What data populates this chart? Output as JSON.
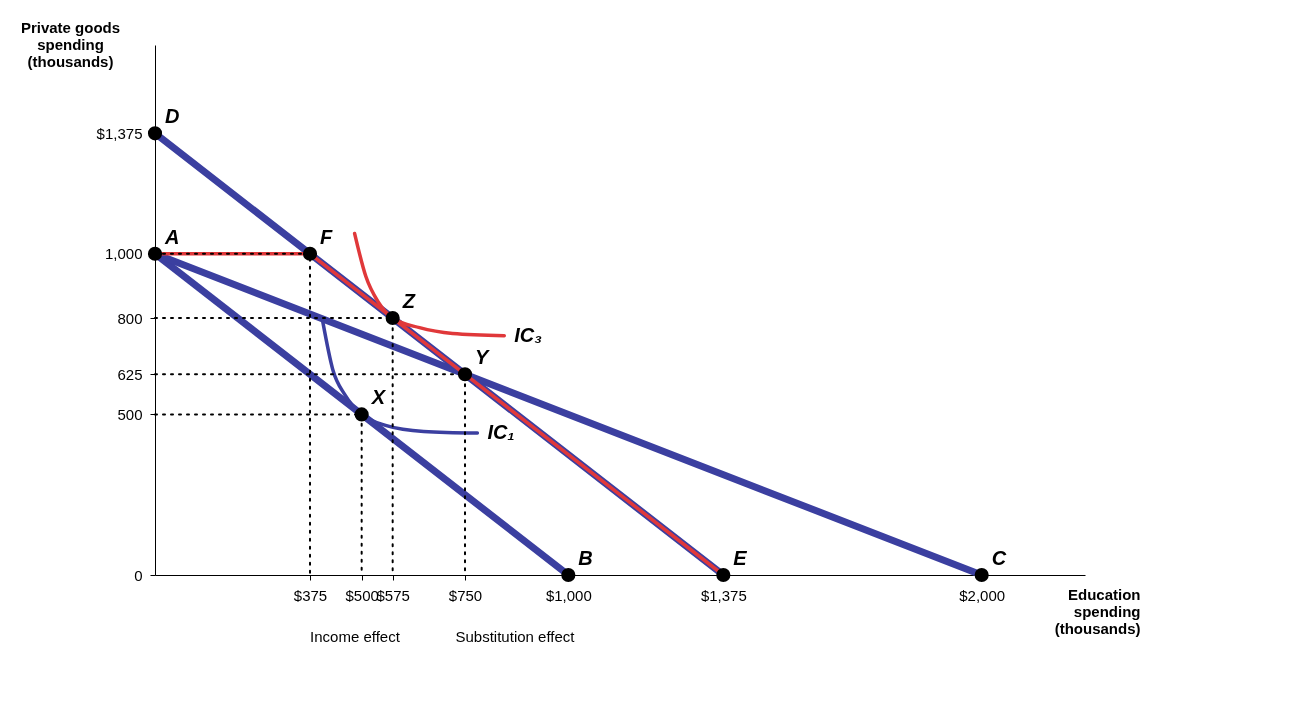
{
  "chart_data": {
    "type": "line",
    "xlabel": "Education spending (thousands)",
    "ylabel": "Private goods spending (thousands)",
    "xlim": [
      0,
      2250
    ],
    "ylim": [
      0,
      1650
    ],
    "xticks": [
      {
        "value": 375,
        "label": "$375"
      },
      {
        "value": 500,
        "label": "$500"
      },
      {
        "value": 575,
        "label": "$575"
      },
      {
        "value": 750,
        "label": "$750"
      },
      {
        "value": 1000,
        "label": "$1,000"
      },
      {
        "value": 1375,
        "label": "$1,375"
      },
      {
        "value": 2000,
        "label": "$2,000"
      }
    ],
    "yticks": [
      0,
      500,
      625,
      800,
      {
        "value": 1000,
        "label": "1,000"
      },
      {
        "value": 1375,
        "label": "$1,375"
      }
    ],
    "grid": false,
    "line_style": "solid",
    "series": [
      {
        "color": "#3b3fa0",
        "x": [
          0,
          1000
        ],
        "values": [
          1000,
          0
        ]
      },
      {
        "color": "#3b3fa0",
        "x": [
          0,
          2000
        ],
        "values": [
          1000,
          0
        ]
      },
      {
        "color": "#3b3fa0",
        "x": [
          0,
          1375
        ],
        "values": [
          1375,
          0
        ]
      },
      {
        "color": "#e0383a",
        "x": [
          0,
          375,
          1375
        ],
        "values": [
          1000,
          1000,
          0
        ]
      },
      {
        "name": "IC₁",
        "color": "#3b3fa0",
        "x": [
          406,
          430,
          460,
          500,
          560,
          650,
          780
        ],
        "values": [
          788,
          640,
          560,
          500,
          465,
          447,
          442
        ]
      },
      {
        "name": "IC₃",
        "color": "#e0383a",
        "x": [
          483,
          510,
          540,
          575,
          640,
          720,
          845
        ],
        "values": [
          1063,
          930,
          850,
          800,
          770,
          752,
          745
        ]
      },
      {
        "color": "#000000",
        "line_style": "dotted",
        "x": [
          0,
          375,
          375
        ],
        "values": [
          1000,
          1000,
          0
        ]
      },
      {
        "color": "#000000",
        "line_style": "dotted",
        "x": [
          0,
          575,
          575
        ],
        "values": [
          800,
          800,
          0
        ]
      },
      {
        "color": "#000000",
        "line_style": "dotted",
        "x": [
          0,
          750,
          750
        ],
        "values": [
          625,
          625,
          0
        ]
      },
      {
        "color": "#000000",
        "line_style": "dotted",
        "x": [
          0,
          500,
          500
        ],
        "values": [
          500,
          500,
          0
        ]
      },
      {
        "type": "scatter",
        "marker": "circle",
        "color": "#000000",
        "x": [
          0,
          0,
          375,
          575,
          750,
          500,
          1000,
          1375,
          2000
        ],
        "values": [
          1375,
          1000,
          1000,
          800,
          625,
          500,
          0,
          0,
          0
        ]
      }
    ],
    "annotations": [
      {
        "text": "D",
        "x": 0,
        "y": 1375
      },
      {
        "text": "A",
        "x": 0,
        "y": 1000
      },
      {
        "text": "F",
        "x": 375,
        "y": 1000
      },
      {
        "text": "Z",
        "x": 575,
        "y": 800
      },
      {
        "text": "Y",
        "x": 750,
        "y": 625
      },
      {
        "text": "X",
        "x": 500,
        "y": 500
      },
      {
        "text": "B",
        "x": 1000,
        "y": 0
      },
      {
        "text": "E",
        "x": 1375,
        "y": 0
      },
      {
        "text": "C",
        "x": 2000,
        "y": 0
      },
      "Income effect",
      "Substitution effect"
    ]
  }
}
